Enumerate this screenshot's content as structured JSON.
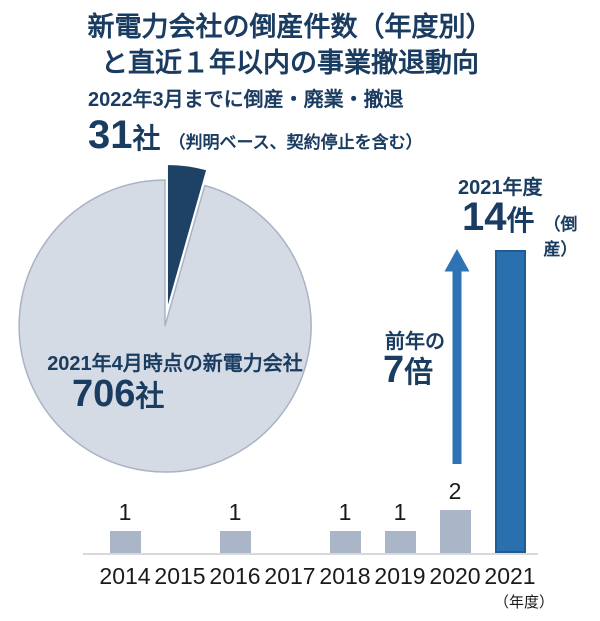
{
  "header": {
    "title_line1": "新電力会社の倒産件数（年度別）",
    "title_line2": "と直近１年以内の事業撤退動向"
  },
  "withdrawal_callout": {
    "caption": "2022年3月までに倒産・廃業・撤退",
    "count_unit": "社",
    "note": "（判明ベース、契約停止を含む）"
  },
  "pie_labels": {
    "base_count_unit": "社"
  },
  "bankruptcy_callout": {
    "year_label": "2021年度",
    "count_unit": "件",
    "note": "（倒産）"
  },
  "growth_callout": {
    "prefix": "前年の",
    "multiplier": "7",
    "multiplier_unit": "倍"
  },
  "axis": {
    "unit_label": "（年度）"
  },
  "colors": {
    "navy_text": "#1b3c61",
    "pie_slice_dark": "#1e4265",
    "pie_base_fill": "#d5dbe4",
    "pie_border": "#a9b3c4",
    "bar_gray": "#aab5c8",
    "bar_accent": "#2a70ae",
    "bar_accent_border": "#1f5c94",
    "arrow_blue": "#2e74b5",
    "baseline_gray": "#d9d9d9",
    "label_black": "#1a1a1a"
  },
  "chart_data": [
    {
      "type": "pie",
      "slices": [
        {
          "label": "2022年3月までに倒産・廃業・撤退",
          "value": 31,
          "unit": "社",
          "note": "（判明ベース、契約停止を含む）",
          "color": "#1e4265",
          "exploded": true
        },
        {
          "label": "2021年4月時点の新電力会社",
          "value": 706,
          "unit": "社",
          "color": "#d5dbe4",
          "exploded": false
        }
      ],
      "legend_position": "none"
    },
    {
      "type": "bar",
      "categories": [
        "2014",
        "2015",
        "2016",
        "2017",
        "2018",
        "2019",
        "2020",
        "2021"
      ],
      "values": [
        1,
        0,
        1,
        0,
        1,
        1,
        2,
        14
      ],
      "xlabel": "（年度）",
      "ylabel": "",
      "ylim": [
        0,
        14
      ],
      "unit": "件",
      "grid": false,
      "accent_category": "2021",
      "annotations": [
        "2021年度",
        "14件（倒産）",
        "前年の7倍"
      ]
    }
  ]
}
